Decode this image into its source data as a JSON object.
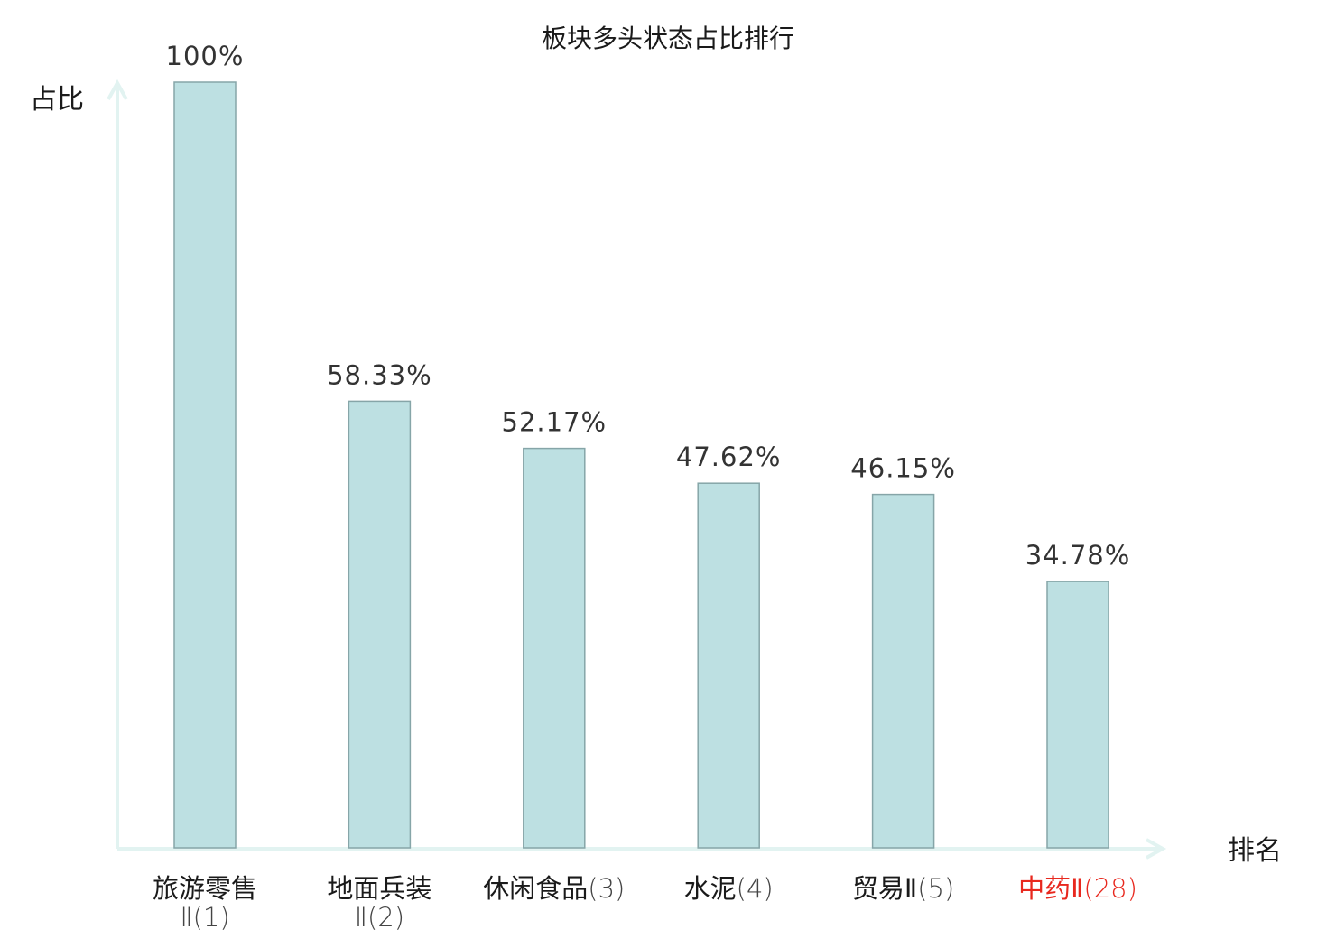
{
  "chart_data": {
    "type": "bar",
    "title": "板块多头状态占比排行",
    "xlabel": "排名",
    "ylabel": "占比",
    "ylim": [
      0,
      100
    ],
    "grid": false,
    "legend": "none",
    "categories": [
      {
        "name": "旅游零售Ⅱ",
        "rank": "(1)",
        "highlight": false
      },
      {
        "name": "地面兵装Ⅱ",
        "rank": "(2)",
        "highlight": false
      },
      {
        "name": "休闲食品",
        "rank": "(3)",
        "highlight": false
      },
      {
        "name": "水泥",
        "rank": "(4)",
        "highlight": false
      },
      {
        "name": "贸易Ⅱ",
        "rank": "(5)",
        "highlight": false
      },
      {
        "name": "中药Ⅱ",
        "rank": "(28)",
        "highlight": true
      }
    ],
    "values": [
      100,
      58.33,
      52.17,
      47.62,
      46.15,
      34.78
    ],
    "value_labels": [
      "100%",
      "58.33%",
      "52.17%",
      "47.62%",
      "46.15%",
      "34.78%"
    ],
    "colors": {
      "bar_fill": "#bde0e2",
      "bar_stroke": "#86a5a8",
      "axis": "#e2f3f1",
      "highlight_text": "#e8281e",
      "text": "#1a1a1a"
    }
  }
}
